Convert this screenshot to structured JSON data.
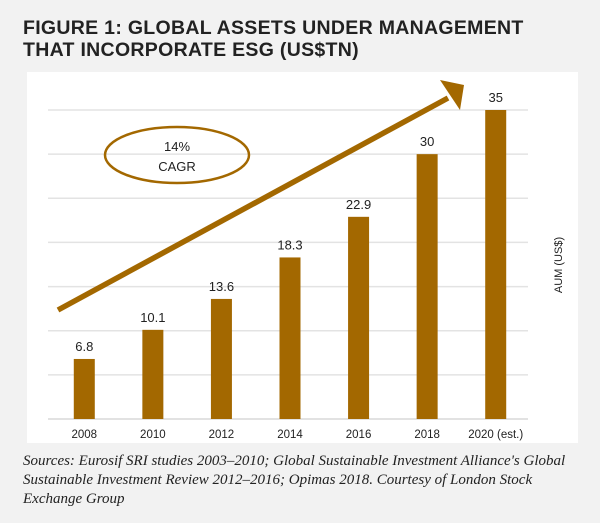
{
  "figure": {
    "title_line1": "FIGURE 1: GLOBAL ASSETS UNDER MANAGEMENT",
    "title_line2": "THAT INCORPORATE ESG (US$TN)",
    "source": "Sources: Eurosif SRI studies 2003–2010; Global Sustainable Investment Alliance's Global Sustainable Investment Review 2012–2016; Opimas 2018. Courtesy of London Stock Exchange Group"
  },
  "chart_data": {
    "type": "bar",
    "title": "Global Assets Under Management That Incorporate ESG (US$TN)",
    "categories": [
      "2008",
      "2010",
      "2012",
      "2014",
      "2016",
      "2018",
      "2020 (est.)"
    ],
    "values": [
      6.8,
      10.1,
      13.6,
      18.3,
      22.9,
      30,
      35
    ],
    "data_labels": [
      "6.8",
      "10.1",
      "13.6",
      "18.3",
      "22.9",
      "30",
      "35"
    ],
    "xlabel": "",
    "ylabel": "AUM (US$)",
    "ylim": [
      0,
      35
    ],
    "gridlines": [
      0,
      5,
      10,
      15,
      20,
      25,
      30,
      35
    ],
    "grid": true,
    "y_tick_labels_shown": false,
    "annotation": {
      "line1": "14%",
      "line2": "CAGR",
      "arrow": "upward trend arrow from 2008 to 2020"
    },
    "colors": {
      "bar": "#a36800",
      "grid": "#e3e3e3",
      "text": "#222222"
    }
  }
}
